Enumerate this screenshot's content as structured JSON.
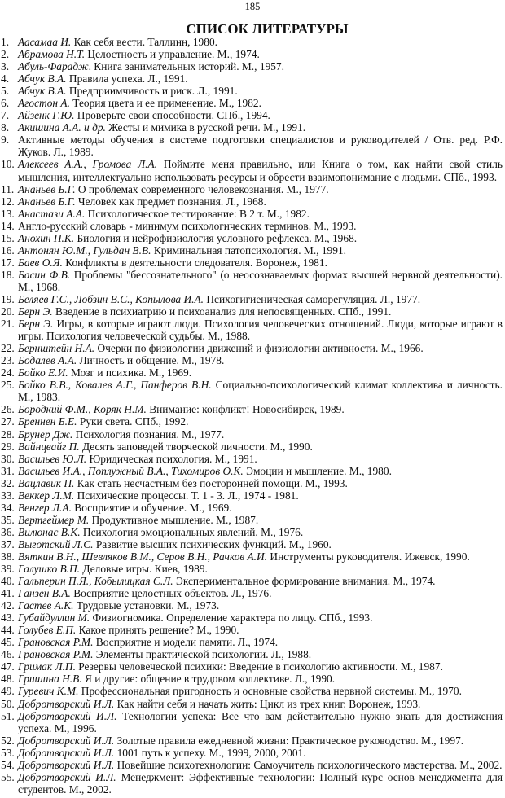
{
  "page_number": "185",
  "title": "СПИСОК ЛИТЕРАТУРЫ",
  "items": [
    {
      "num": "1.",
      "author": "Аасамаа И.",
      "text": " Как себя вести. Таллинн, 1980."
    },
    {
      "num": "2.",
      "author": "Абрамова Н.Т.",
      "text": " Целостность и управление. М., 1974."
    },
    {
      "num": "3.",
      "author": "Абуль-Фарадж",
      "text": ". Книга занимательных историй. М., 1957."
    },
    {
      "num": "4.",
      "author": "Абчук В.А.",
      "text": " Правила успеха. Л., 1991."
    },
    {
      "num": "5.",
      "author": "Абчук В.А.",
      "text": " Предприимчивость и риск. Л., 1991."
    },
    {
      "num": "6.",
      "author": "Агостон А.",
      "text": " Теория цвета и ее применение. М., 1982."
    },
    {
      "num": "7.",
      "author": "Айзенк Г.Ю.",
      "text": " Проверьте свои способности. СПб., 1994."
    },
    {
      "num": "8.",
      "author": "Акишина А.А. и др.",
      "text": " Жесты и мимика в русской речи. М., 1991."
    },
    {
      "num": "9.",
      "author": "",
      "text": "Активные методы обучения в системе подготовки специалистов и руководителей / Отв. ред. Р.Ф. Жуков. Л., 1989."
    },
    {
      "num": "10.",
      "author": "Алексеев А.А., Громова Л.А.",
      "text": " Поймите меня правильно, или Книга о том, как найти свой стиль мышления, интеллектуально использовать ресурсы и обрести взаимопонимание с людьми. СПб., 1993."
    },
    {
      "num": "11.",
      "author": "Ананьев Б.Г.",
      "text": " О проблемах современного человекознания. М., 1977."
    },
    {
      "num": "12.",
      "author": "Ананьев Б.Г.",
      "text": " Человек как предмет познания. Л., 1968."
    },
    {
      "num": "13.",
      "author": "Анастази А.А.",
      "text": " Психологическое тестирование: В 2 т. М., 1982."
    },
    {
      "num": "14.",
      "author": "",
      "text": "Англо-русский словарь - минимум психологических терминов. М., 1993."
    },
    {
      "num": "15.",
      "author": "Анохин П.К.",
      "text": " Биология и нейрофизиология условного рефлекса. М., 1968."
    },
    {
      "num": "16.",
      "author": "Антонян Ю.М., Гульдан В.В.",
      "text": " Криминальная патопсихология. М., 1991."
    },
    {
      "num": "17.",
      "author": "Баев О.Я.",
      "text": " Конфликты в деятельности следователя. Воронеж, 1981."
    },
    {
      "num": "18.",
      "author": "Басин Ф.В.",
      "text": " Проблемы \"бессознательного\" (о неосознаваемых формах высшей нервной деятельности). М., 1968."
    },
    {
      "num": "19.",
      "author": "Беляев Г.С., Лобзин В.С., Копылова И.А.",
      "text": " Психогигиеническая саморегуляция. Л., 1977."
    },
    {
      "num": "20.",
      "author": "Берн Э.",
      "text": " Введение в психиатрию и психоанализ для непосвященных. СПб., 1991."
    },
    {
      "num": "21.",
      "author": "Берн Э.",
      "text": " Игры, в которые играют люди. Психология человеческих отношений. Люди, которые играют в игры. Психология человеческой судьбы. М., 1988."
    },
    {
      "num": "22.",
      "author": "Бернштейн Н.А.",
      "text": " Очерки по физиологии движений и физиологии активности. М., 1966."
    },
    {
      "num": "23.",
      "author": "Бодалев А.А.",
      "text": " Личность и общение. М., 1978."
    },
    {
      "num": "24.",
      "author": "Бойко Е.И.",
      "text": " Мозг и психика. М., 1969."
    },
    {
      "num": "25.",
      "author": "Бойко В.В., Ковалев А.Г., Панферов В.Н.",
      "text": " Социально-психологический климат коллектива и личность. М., 1983."
    },
    {
      "num": "26.",
      "author": "Бородкий Ф.М., Коряк Н.М.",
      "text": " Внимание: конфликт! Новосибирск, 1989."
    },
    {
      "num": "27.",
      "author": "Бреннен Б.Е.",
      "text": " Руки света. СПб., 1992."
    },
    {
      "num": "28.",
      "author": "Брунер Дж.",
      "text": " Психология познания. М., 1977."
    },
    {
      "num": "29.",
      "author": "Вайнцвайг П.",
      "text": " Десять заповедей творческой личности. М., 1990."
    },
    {
      "num": "30.",
      "author": "Васильев Ю.Л.",
      "text": " Юридическая психология. М., 1991."
    },
    {
      "num": "31.",
      "author": "Васильев И.А., Поплужный В.А., Тихомиров О.К.",
      "text": " Эмоции и мышление. М., 1980."
    },
    {
      "num": "32.",
      "author": "Вацлавик П.",
      "text": " Как стать несчастным без посторонней помощи. М., 1993."
    },
    {
      "num": "33.",
      "author": "Веккер Л.М.",
      "text": " Психические процессы. Т. 1 - 3. Л., 1974 - 1981."
    },
    {
      "num": "34.",
      "author": "Венгер Л.А.",
      "text": " Восприятие и обучение. М., 1969."
    },
    {
      "num": "35.",
      "author": "Вертгеймер М.",
      "text": " Продуктивное мышление. М., 1987."
    },
    {
      "num": "36.",
      "author": "Вилюнас В.К.",
      "text": " Психология эмоциональных явлений. М., 1976."
    },
    {
      "num": "37.",
      "author": "Выготский Л.С.",
      "text": " Развитие высших психических функций. М., 1960."
    },
    {
      "num": "38.",
      "author": "Вяткин В.Н., Шевляков В.М., Серов В.Н., Рачков А.И.",
      "text": " Инструменты руководителя. Ижевск, 1990."
    },
    {
      "num": "39.",
      "author": "Галушко В.П.",
      "text": " Деловые игры. Киев, 1989."
    },
    {
      "num": "40.",
      "author": "Гальперин П.Я., Кобылицкая С.Л.",
      "text": " Экспериментальное формирование внимания. М., 1974."
    },
    {
      "num": "41.",
      "author": "Ганзен В.А.",
      "text": " Восприятие целостных объектов. Л., 1976."
    },
    {
      "num": "42.",
      "author": "Гастев А.К.",
      "text": " Трудовые установки. М., 1973."
    },
    {
      "num": "43.",
      "author": "Губайдуллин М.",
      "text": " Физиогномика. Определение характера по лицу. СПб., 1993."
    },
    {
      "num": "44.",
      "author": "Голубев Е.П.",
      "text": " Какое принять решение? М., 1990."
    },
    {
      "num": "45.",
      "author": "Грановская Р.М.",
      "text": " Восприятие и модели памяти. Л., 1974."
    },
    {
      "num": "46.",
      "author": "Грановская Р.М.",
      "text": " Элементы практической психологии. Л., 1988."
    },
    {
      "num": "47.",
      "author": "Гримак Л.П.",
      "text": " Резервы человеческой психики: Введение в психологию активности. М., 1987."
    },
    {
      "num": "48.",
      "author": "Гришина Н.В.",
      "text": " Я и другие: общение в трудовом коллективе. Л., 1990."
    },
    {
      "num": "49.",
      "author": "Гуревич К.М.",
      "text": " Профессиональная пригодность и основные свойства нервной системы. М., 1970."
    },
    {
      "num": "50.",
      "author": "Добротворский И.Л.",
      "text": " Как найти себя и начать жить: Цикл из трех книг. Воронеж, 1993."
    },
    {
      "num": "51.",
      "author": "Добротворский И.Л.",
      "text": " Технологии успеха: Все что вам действительно нужно знать для достижения успеха. М., 1996."
    },
    {
      "num": "52.",
      "author": "Добротворский И.Л.",
      "text": " Золотые правила ежедневной жизни: Практическое руководство. М., 1997."
    },
    {
      "num": "53.",
      "author": "Добротворский И.Л.",
      "text": " 1001 путь к успеху. М., 1999, 2000, 2001."
    },
    {
      "num": "54.",
      "author": "Добротворский И.Л.",
      "text": " Новейшие психотехнологии: Самоучитель психологического мастерства. М., 2002."
    },
    {
      "num": "55.",
      "author": "Добротворский И.Л.",
      "text": " Менеджмент: Эффективные технологии: Полный курс основ менеджмента для студентов. М., 2002."
    }
  ]
}
